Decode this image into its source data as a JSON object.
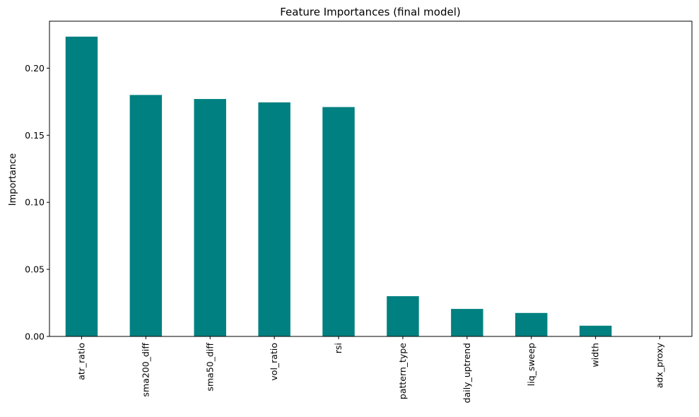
{
  "chart_data": {
    "type": "bar",
    "title": "Feature Importances (final model)",
    "xlabel": "",
    "ylabel": "Importance",
    "categories": [
      "atr_ratio",
      "sma200_diff",
      "sma50_diff",
      "vol_ratio",
      "rsi",
      "pattern_type",
      "daily_uptrend",
      "liq_sweep",
      "width",
      "adx_proxy"
    ],
    "values": [
      0.2235,
      0.18,
      0.177,
      0.1745,
      0.171,
      0.03,
      0.0205,
      0.0175,
      0.008,
      0.0
    ],
    "ylim": [
      0,
      0.235
    ],
    "yticks": [
      0.0,
      0.05,
      0.1,
      0.15,
      0.2
    ],
    "ytick_labels": [
      "0.00",
      "0.05",
      "0.10",
      "0.15",
      "0.20"
    ],
    "bar_color": "#008080",
    "grid": false,
    "legend": "none"
  }
}
